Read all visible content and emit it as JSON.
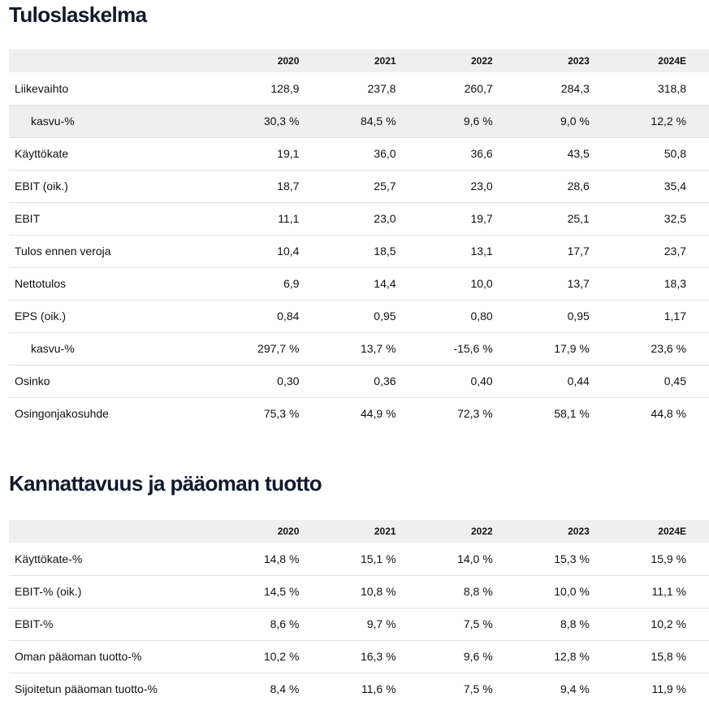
{
  "income_statement": {
    "title": "Tuloslaskelma",
    "years": [
      "2020",
      "2021",
      "2022",
      "2023",
      "2024E"
    ],
    "rows": [
      {
        "label": "Liikevaihto",
        "indent": false,
        "shaded": false,
        "values": [
          "128,9",
          "237,8",
          "260,7",
          "284,3",
          "318,8"
        ]
      },
      {
        "label": "kasvu-%",
        "indent": true,
        "shaded": true,
        "values": [
          "30,3 %",
          "84,5 %",
          "9,6 %",
          "9,0 %",
          "12,2 %"
        ]
      },
      {
        "label": "Käyttökate",
        "indent": false,
        "shaded": false,
        "values": [
          "19,1",
          "36,0",
          "36,6",
          "43,5",
          "50,8"
        ]
      },
      {
        "label": "EBIT (oik.)",
        "indent": false,
        "shaded": false,
        "values": [
          "18,7",
          "25,7",
          "23,0",
          "28,6",
          "35,4"
        ]
      },
      {
        "label": "EBIT",
        "indent": false,
        "shaded": false,
        "values": [
          "11,1",
          "23,0",
          "19,7",
          "25,1",
          "32,5"
        ]
      },
      {
        "label": "Tulos ennen veroja",
        "indent": false,
        "shaded": false,
        "values": [
          "10,4",
          "18,5",
          "13,1",
          "17,7",
          "23,7"
        ]
      },
      {
        "label": "Nettotulos",
        "indent": false,
        "shaded": false,
        "values": [
          "6,9",
          "14,4",
          "10,0",
          "13,7",
          "18,3"
        ]
      },
      {
        "label": "EPS (oik.)",
        "indent": false,
        "shaded": false,
        "values": [
          "0,84",
          "0,95",
          "0,80",
          "0,95",
          "1,17"
        ]
      },
      {
        "label": "kasvu-%",
        "indent": true,
        "shaded": false,
        "values": [
          "297,7 %",
          "13,7 %",
          "-15,6 %",
          "17,9 %",
          "23,6 %"
        ]
      },
      {
        "label": "Osinko",
        "indent": false,
        "shaded": false,
        "values": [
          "0,30",
          "0,36",
          "0,40",
          "0,44",
          "0,45"
        ]
      },
      {
        "label": "Osingonjakosuhde",
        "indent": false,
        "shaded": false,
        "values": [
          "75,3 %",
          "44,9 %",
          "72,3 %",
          "58,1 %",
          "44,8 %"
        ]
      }
    ]
  },
  "profitability": {
    "title": "Kannattavuus ja pääoman tuotto",
    "years": [
      "2020",
      "2021",
      "2022",
      "2023",
      "2024E"
    ],
    "rows": [
      {
        "label": "Käyttökate-%",
        "indent": false,
        "shaded": false,
        "values": [
          "14,8 %",
          "15,1 %",
          "14,0 %",
          "15,3 %",
          "15,9 %"
        ]
      },
      {
        "label": "EBIT-% (oik.)",
        "indent": false,
        "shaded": false,
        "values": [
          "14,5 %",
          "10,8 %",
          "8,8 %",
          "10,0 %",
          "11,1 %"
        ]
      },
      {
        "label": "EBIT-%",
        "indent": false,
        "shaded": false,
        "values": [
          "8,6 %",
          "9,7 %",
          "7,5 %",
          "8,8 %",
          "10,2 %"
        ]
      },
      {
        "label": "Oman pääoman tuotto-%",
        "indent": false,
        "shaded": false,
        "values": [
          "10,2 %",
          "16,3 %",
          "9,6 %",
          "12,8 %",
          "15,8 %"
        ]
      },
      {
        "label": "Sijoitetun pääoman tuotto-%",
        "indent": false,
        "shaded": false,
        "values": [
          "8,4 %",
          "11,6 %",
          "7,5 %",
          "9,4 %",
          "11,9 %"
        ]
      }
    ]
  }
}
